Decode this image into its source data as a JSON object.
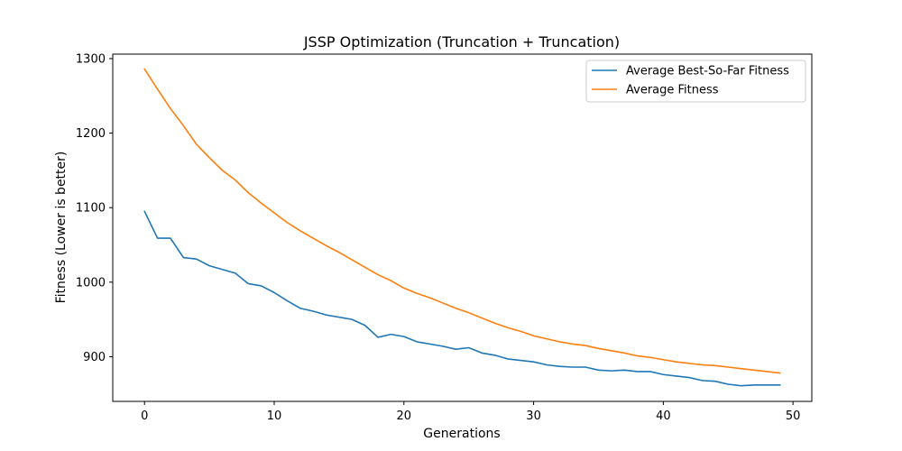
{
  "chart_data": {
    "type": "line",
    "title": "JSSP Optimization (Truncation + Truncation)",
    "xlabel": "Generations",
    "ylabel": "Fitness (Lower is better)",
    "xlim": [
      -2.45,
      51.45
    ],
    "ylim": [
      840,
      1306
    ],
    "xticks": [
      0,
      10,
      20,
      30,
      40,
      50
    ],
    "yticks": [
      900,
      1000,
      1100,
      1200,
      1300
    ],
    "grid": false,
    "legend_position": "top-right",
    "x": [
      0,
      1,
      2,
      3,
      4,
      5,
      6,
      7,
      8,
      9,
      10,
      11,
      12,
      13,
      14,
      15,
      16,
      17,
      18,
      19,
      20,
      21,
      22,
      23,
      24,
      25,
      26,
      27,
      28,
      29,
      30,
      31,
      32,
      33,
      34,
      35,
      36,
      37,
      38,
      39,
      40,
      41,
      42,
      43,
      44,
      45,
      46,
      47,
      48,
      49
    ],
    "series": [
      {
        "name": "Average Best-So-Far Fitness",
        "color": "#1f77b4",
        "values": [
          1095,
          1059,
          1059,
          1033,
          1031,
          1022,
          1017,
          1012,
          998,
          995,
          986,
          975,
          965,
          961,
          956,
          953,
          950,
          942,
          926,
          930,
          927,
          920,
          917,
          914,
          910,
          912,
          905,
          902,
          897,
          895,
          893,
          889,
          887,
          886,
          886,
          882,
          881,
          882,
          880,
          880,
          876,
          874,
          872,
          868,
          867,
          863,
          861,
          862,
          862,
          862
        ]
      },
      {
        "name": "Average Fitness",
        "color": "#ff7f0e",
        "values": [
          1286,
          1259,
          1233,
          1210,
          1185,
          1167,
          1150,
          1137,
          1120,
          1106,
          1093,
          1080,
          1069,
          1059,
          1049,
          1040,
          1030,
          1020,
          1010,
          1002,
          992,
          985,
          979,
          972,
          965,
          959,
          952,
          945,
          939,
          934,
          928,
          924,
          920,
          917,
          915,
          911,
          908,
          905,
          901,
          899,
          896,
          893,
          891,
          889,
          888,
          886,
          884,
          882,
          880,
          878
        ]
      }
    ]
  }
}
